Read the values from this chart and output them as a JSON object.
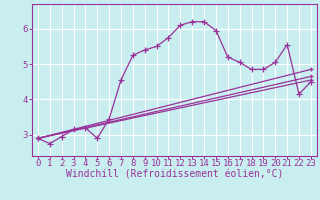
{
  "xlabel": "Windchill (Refroidissement éolien,°C)",
  "background_color": "#c8eef0",
  "line_color": "#993399",
  "grid_color": "#ffffff",
  "xlim": [
    -0.5,
    23.5
  ],
  "ylim": [
    2.4,
    6.7
  ],
  "yticks": [
    3,
    4,
    5,
    6
  ],
  "xticks": [
    0,
    1,
    2,
    3,
    4,
    5,
    6,
    7,
    8,
    9,
    10,
    11,
    12,
    13,
    14,
    15,
    16,
    17,
    18,
    19,
    20,
    21,
    22,
    23
  ],
  "line1_x": [
    0,
    1,
    2,
    3,
    4,
    5,
    6,
    7,
    8,
    9,
    10,
    11,
    12,
    13,
    14,
    15,
    16,
    17,
    18,
    19,
    20,
    21,
    22,
    23
  ],
  "line1_y": [
    2.9,
    2.75,
    2.95,
    3.15,
    3.2,
    2.9,
    3.45,
    4.55,
    5.25,
    5.4,
    5.5,
    5.75,
    6.1,
    6.2,
    6.2,
    5.95,
    5.2,
    5.05,
    4.85,
    4.85,
    5.05,
    5.55,
    4.15,
    4.5
  ],
  "line2_x": [
    0,
    23
  ],
  "line2_y": [
    2.9,
    4.85
  ],
  "line3_x": [
    0,
    23
  ],
  "line3_y": [
    2.9,
    4.55
  ],
  "line4_x": [
    0,
    23
  ],
  "line4_y": [
    2.9,
    4.65
  ],
  "tick_label_fontsize": 6.5,
  "axis_label_fontsize": 7
}
